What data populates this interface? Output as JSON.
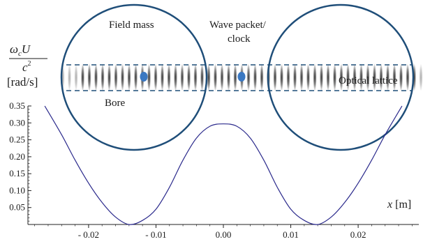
{
  "labels": {
    "field_mass": "Field mass",
    "wave_packet_line1": "Wave packet/",
    "wave_packet_line2": "clock",
    "bore": "Bore",
    "optical_lattice": "Optical lattice",
    "ylabel_numerator": "ω",
    "ylabel_subscript": "c",
    "ylabel_numerator_var": "U",
    "ylabel_denominator": "c",
    "ylabel_power": "2",
    "ylabel_unit": "[rad/s]",
    "xlabel_var": "x",
    "xlabel_unit": "[m]"
  },
  "colors": {
    "circle": "#1f4e79",
    "dashed": "#1f4e79",
    "dot": "#3a78c2",
    "curve": "#2b2a8c",
    "axis": "#222222"
  },
  "chart_data": {
    "type": "line",
    "xlabel": "x [m]",
    "ylabel": "ω_c U / c² [rad/s]",
    "xlim": [
      -0.029,
      0.029
    ],
    "ylim": [
      0,
      0.35
    ],
    "yticks": [
      0.05,
      0.1,
      0.15,
      0.2,
      0.25,
      0.3,
      0.35
    ],
    "ytick_labels": [
      "0.05",
      "0.10",
      "0.15",
      "0.20",
      "0.25",
      "0.30",
      "0.35"
    ],
    "xticks": [
      -0.02,
      -0.01,
      0.0,
      0.01,
      0.02
    ],
    "xtick_labels": [
      "- 0.02",
      "- 0.01",
      "0.00",
      "0.01",
      "0.02"
    ],
    "x": [
      -0.0265,
      -0.024,
      -0.022,
      -0.02,
      -0.018,
      -0.016,
      -0.014,
      -0.012,
      -0.01,
      -0.008,
      -0.006,
      -0.004,
      -0.002,
      0.0,
      0.002,
      0.004,
      0.006,
      0.008,
      0.01,
      0.012,
      0.014,
      0.016,
      0.018,
      0.02,
      0.022,
      0.024,
      0.0265
    ],
    "y": [
      0.35,
      0.265,
      0.19,
      0.122,
      0.065,
      0.022,
      0.0,
      0.012,
      0.045,
      0.11,
      0.19,
      0.255,
      0.29,
      0.297,
      0.29,
      0.255,
      0.19,
      0.11,
      0.045,
      0.012,
      0.0,
      0.022,
      0.065,
      0.122,
      0.19,
      0.265,
      0.35
    ]
  }
}
